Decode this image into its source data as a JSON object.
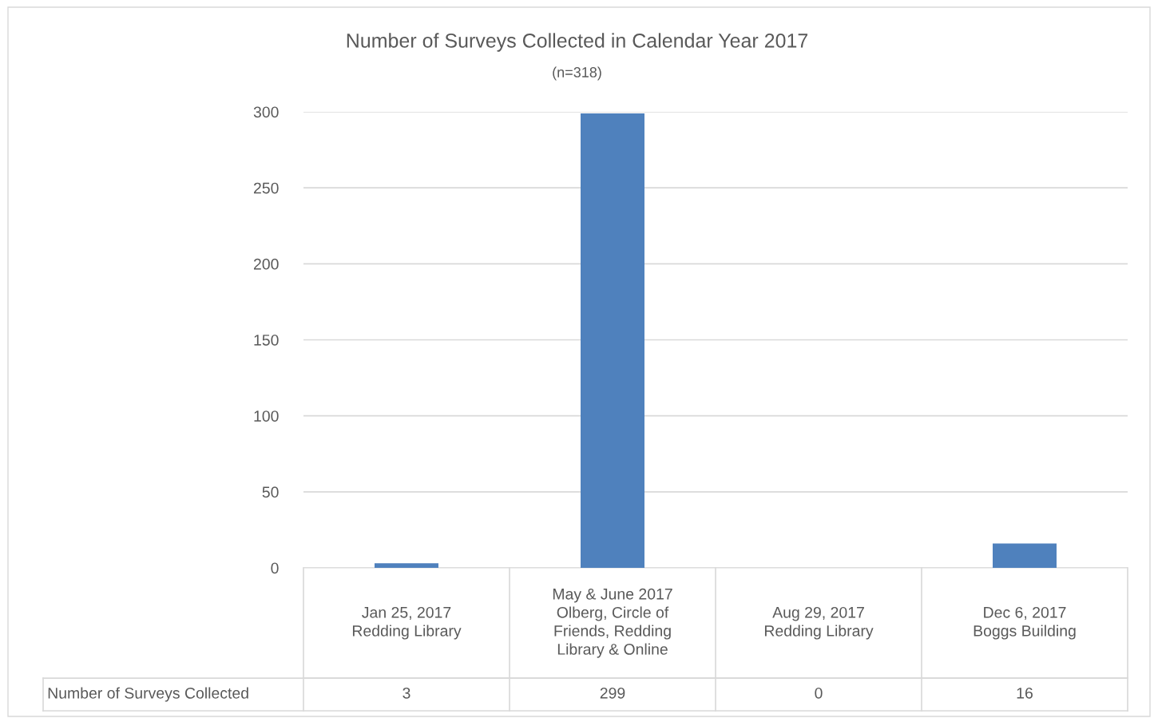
{
  "chart_data": {
    "type": "bar",
    "title": "Number of Surveys Collected in Calendar Year 2017",
    "subtitle": "(n=318)",
    "categories": [
      "Jan 25, 2017\nRedding Library",
      "May & June 2017\nOlberg, Circle of\nFriends, Redding\nLibrary & Online",
      "Aug 29, 2017\nRedding Library",
      "Dec 6, 2017\nBoggs Building"
    ],
    "series": [
      {
        "name": "Number of Surveys Collected",
        "color": "#4f81bd",
        "values": [
          3,
          299,
          0,
          16
        ]
      }
    ],
    "ylim": [
      0,
      300
    ],
    "yticks": [
      0,
      50,
      100,
      150,
      200,
      250,
      300
    ],
    "grid": "y",
    "data_labels": true
  }
}
